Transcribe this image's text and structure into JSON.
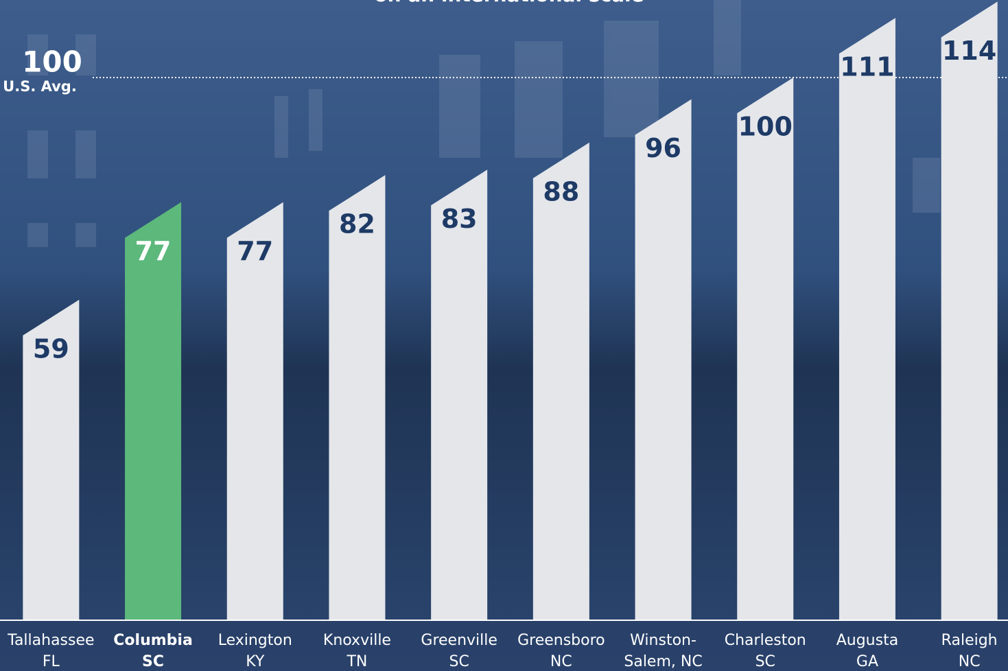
{
  "chart_data": {
    "type": "bar",
    "title": "on an international scale",
    "categories": [
      [
        "Tallahassee",
        "FL"
      ],
      [
        "Columbia",
        "SC"
      ],
      [
        "Lexington",
        "KY"
      ],
      [
        "Knoxville",
        "TN"
      ],
      [
        "Greenville",
        "SC"
      ],
      [
        "Greensboro",
        "NC"
      ],
      [
        "Winston-",
        "Salem, NC"
      ],
      [
        "Charleston",
        "SC"
      ],
      [
        "Augusta",
        "GA"
      ],
      [
        "Raleigh",
        "NC"
      ]
    ],
    "values": [
      59,
      77,
      77,
      82,
      83,
      88,
      96,
      100,
      111,
      114
    ],
    "colors": [
      "#e4e6ea",
      "#5cb87b",
      "#e4e6ea",
      "#e4e6ea",
      "#e4e6ea",
      "#e4e6ea",
      "#e4e6ea",
      "#e4e6ea",
      "#e4e6ea",
      "#e4e6ea"
    ],
    "highlight_color": "#5cb87b",
    "reference_line": {
      "value": 100,
      "label": "U.S. Avg."
    },
    "ylim": [
      0,
      114.3
    ]
  }
}
